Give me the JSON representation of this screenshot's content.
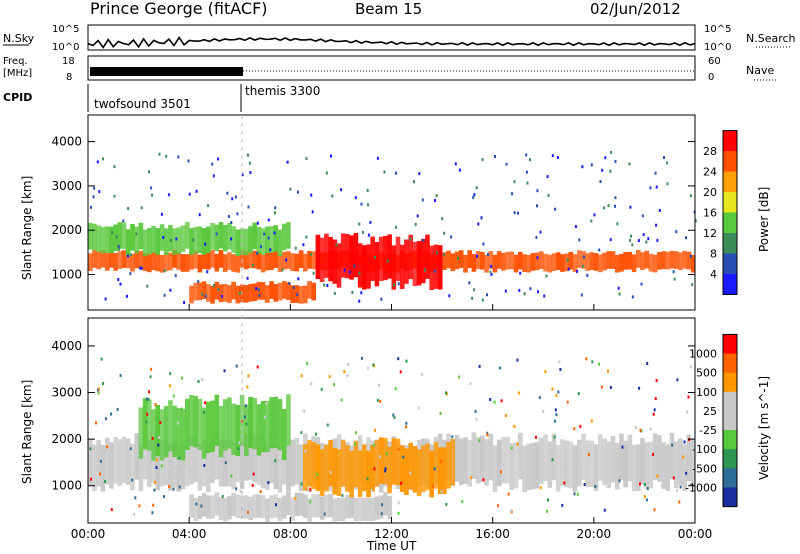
{
  "header": {
    "station": "Prince George (fitACF)",
    "beam": "Beam 15",
    "date": "02/Jun/2012"
  },
  "panels": {
    "sky": {
      "left_label": "N.Sky",
      "right_label": "N.Search",
      "left_ticks": [
        "10^5",
        "10^0"
      ],
      "right_ticks": [
        "10^5",
        "10^0"
      ]
    },
    "freq": {
      "left_label_1": "Freq.",
      "left_label_2": "[MHz]",
      "left_ticks": [
        "18",
        "8"
      ],
      "right_ticks": [
        "60",
        "0"
      ],
      "right_label": "Nave"
    },
    "cpid": {
      "label": "CPID",
      "modes": [
        "twofsound 3501",
        "themis 3300"
      ]
    }
  },
  "chart_data": [
    {
      "type": "heatmap",
      "title": "",
      "ylabel": "Slant Range [km]",
      "yticks": [
        "1000",
        "2000",
        "3000",
        "4000"
      ],
      "ylim": [
        200,
        4600
      ],
      "colorbar_label": "Power [dB]",
      "colorbar_ticks": [
        "4",
        "8",
        "12",
        "16",
        "20",
        "24",
        "28"
      ],
      "colors": [
        "#1a1aff",
        "#2850b4",
        "#3c8c5a",
        "#5ac83c",
        "#e6e61e",
        "#ffa00a",
        "#ff5000",
        "#ff0000"
      ],
      "layers": [
        {
          "name": "lower band",
          "x_start": "00:00",
          "x_end": "24:00",
          "range_km": [
            1100,
            1500
          ],
          "value_db": 24
        },
        {
          "name": "upper band",
          "x_start": "00:00",
          "x_end": "08:00",
          "range_km": [
            1500,
            2100
          ],
          "value_db": 12
        },
        {
          "name": "near-range band",
          "x_start": "04:00",
          "x_end": "09:00",
          "range_km": [
            400,
            800
          ],
          "value_db": 26
        },
        {
          "name": "intense region",
          "x_start": "09:00",
          "x_end": "14:00",
          "range_km": [
            800,
            1800
          ],
          "value_db": 30
        }
      ]
    },
    {
      "type": "heatmap",
      "title": "",
      "ylabel": "Slant Range [km]",
      "yticks": [
        "1000",
        "2000",
        "3000",
        "4000"
      ],
      "ylim": [
        200,
        4600
      ],
      "colorbar_label": "Velocity [m s^-1]",
      "colorbar_ticks": [
        "1000",
        "500",
        "100",
        "25",
        "-25",
        "-100",
        "-500",
        "-1000"
      ],
      "colors": [
        "#1a2d9f",
        "#2d6e96",
        "#2d9650",
        "#5ac83c",
        "#c8c8c8",
        "#c8c8c8",
        "#ff9600",
        "#ff6400",
        "#ff0000"
      ],
      "layers": [
        {
          "name": "ground scatter",
          "x_start": "00:00",
          "x_end": "24:00",
          "range_km": [
            1000,
            2000
          ],
          "value_ms": 0
        },
        {
          "name": "near-range ground scatter",
          "x_start": "04:00",
          "x_end": "12:00",
          "range_km": [
            300,
            800
          ],
          "value_ms": 0
        },
        {
          "name": "receding echoes",
          "x_start": "08:30",
          "x_end": "14:30",
          "range_km": [
            900,
            1900
          ],
          "value_ms": -200
        },
        {
          "name": "approaching echoes",
          "x_start": "02:00",
          "x_end": "08:00",
          "range_km": [
            1700,
            2800
          ],
          "value_ms": 150
        }
      ]
    }
  ],
  "xaxis": {
    "label": "Time UT",
    "ticks": [
      "00:00",
      "04:00",
      "08:00",
      "12:00",
      "16:00",
      "20:00",
      "00:00"
    ]
  }
}
